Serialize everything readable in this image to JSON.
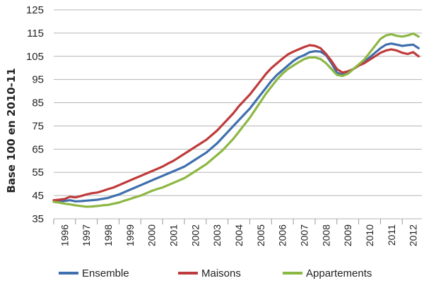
{
  "chart_data": {
    "type": "line",
    "title": "",
    "xlabel": "",
    "ylabel": "Base 100 en 2010-11",
    "ylim": [
      35,
      125
    ],
    "yticks": [
      35,
      45,
      55,
      65,
      75,
      85,
      95,
      105,
      115,
      125
    ],
    "xlim": [
      1996,
      2012.9
    ],
    "xticks": [
      "1996",
      "1997",
      "1998",
      "1999",
      "2000",
      "2001",
      "2002",
      "2003",
      "2004",
      "2005",
      "2006",
      "2007",
      "2008",
      "2009",
      "2010",
      "2011",
      "2012"
    ],
    "grid": "horizontal",
    "legend_position": "bottom",
    "series": [
      {
        "name": "Ensemble",
        "color": "#3f6fad",
        "x": [
          1996,
          1996.25,
          1996.5,
          1996.75,
          1997,
          1997.25,
          1997.5,
          1997.75,
          1998,
          1998.25,
          1998.5,
          1998.75,
          1999,
          1999.25,
          1999.5,
          1999.75,
          2000,
          2000.25,
          2000.5,
          2000.75,
          2001,
          2001.25,
          2001.5,
          2001.75,
          2002,
          2002.25,
          2002.5,
          2002.75,
          2003,
          2003.25,
          2003.5,
          2003.75,
          2004,
          2004.25,
          2004.5,
          2004.75,
          2005,
          2005.25,
          2005.5,
          2005.75,
          2006,
          2006.25,
          2006.5,
          2006.75,
          2007,
          2007.25,
          2007.5,
          2007.75,
          2008,
          2008.25,
          2008.5,
          2008.75,
          2009,
          2009.25,
          2009.5,
          2009.75,
          2010,
          2010.25,
          2010.5,
          2010.75,
          2011,
          2011.25,
          2011.5,
          2011.75,
          2012,
          2012.25,
          2012.5,
          2012.75
        ],
        "values": [
          42.8,
          42.6,
          42.7,
          43.0,
          42.5,
          42.6,
          42.8,
          43.0,
          43.2,
          43.6,
          44.0,
          44.8,
          45.5,
          46.5,
          47.5,
          48.5,
          49.5,
          50.5,
          51.5,
          52.5,
          53.5,
          54.5,
          55.5,
          56.5,
          57.5,
          59.0,
          60.5,
          62.0,
          63.5,
          65.5,
          67.5,
          70.0,
          72.5,
          75.0,
          77.5,
          80.0,
          82.5,
          85.5,
          88.5,
          91.5,
          94.5,
          97.0,
          99.0,
          101.0,
          103.0,
          104.5,
          105.5,
          106.8,
          107.2,
          107.0,
          105.5,
          102.0,
          98.0,
          97.0,
          97.5,
          99.5,
          101.0,
          102.5,
          104.5,
          106.5,
          108.5,
          110.0,
          110.5,
          110.0,
          109.5,
          109.8,
          110.0,
          108.5
        ]
      },
      {
        "name": "Maisons",
        "color": "#bf3b3b",
        "x": [
          1996,
          1996.25,
          1996.5,
          1996.75,
          1997,
          1997.25,
          1997.5,
          1997.75,
          1998,
          1998.25,
          1998.5,
          1998.75,
          1999,
          1999.25,
          1999.5,
          1999.75,
          2000,
          2000.25,
          2000.5,
          2000.75,
          2001,
          2001.25,
          2001.5,
          2001.75,
          2002,
          2002.25,
          2002.5,
          2002.75,
          2003,
          2003.25,
          2003.5,
          2003.75,
          2004,
          2004.25,
          2004.5,
          2004.75,
          2005,
          2005.25,
          2005.5,
          2005.75,
          2006,
          2006.25,
          2006.5,
          2006.75,
          2007,
          2007.25,
          2007.5,
          2007.75,
          2008,
          2008.25,
          2008.5,
          2008.75,
          2009,
          2009.25,
          2009.5,
          2009.75,
          2010,
          2010.25,
          2010.5,
          2010.75,
          2011,
          2011.25,
          2011.5,
          2011.75,
          2012,
          2012.25,
          2012.5,
          2012.75
        ],
        "values": [
          43.0,
          43.2,
          43.5,
          44.5,
          44.2,
          44.8,
          45.5,
          46.0,
          46.3,
          47.0,
          47.8,
          48.5,
          49.5,
          50.5,
          51.5,
          52.5,
          53.5,
          54.5,
          55.5,
          56.5,
          57.5,
          58.8,
          60.0,
          61.5,
          63.0,
          64.5,
          66.0,
          67.5,
          69.0,
          71.0,
          73.0,
          75.5,
          78.0,
          80.5,
          83.5,
          86.0,
          88.5,
          91.5,
          94.5,
          97.5,
          100.0,
          102.0,
          104.0,
          105.8,
          107.0,
          108.0,
          109.0,
          109.8,
          109.5,
          108.5,
          106.0,
          103.0,
          99.5,
          98.0,
          98.5,
          99.5,
          101.0,
          102.0,
          103.5,
          105.0,
          106.5,
          107.5,
          108.0,
          107.5,
          106.5,
          106.0,
          106.8,
          105.0
        ]
      },
      {
        "name": "Appartements",
        "color": "#8db743",
        "x": [
          1996,
          1996.25,
          1996.5,
          1996.75,
          1997,
          1997.25,
          1997.5,
          1997.75,
          1998,
          1998.25,
          1998.5,
          1998.75,
          1999,
          1999.25,
          1999.5,
          1999.75,
          2000,
          2000.25,
          2000.5,
          2000.75,
          2001,
          2001.25,
          2001.5,
          2001.75,
          2002,
          2002.25,
          2002.5,
          2002.75,
          2003,
          2003.25,
          2003.5,
          2003.75,
          2004,
          2004.25,
          2004.5,
          2004.75,
          2005,
          2005.25,
          2005.5,
          2005.75,
          2006,
          2006.25,
          2006.5,
          2006.75,
          2007,
          2007.25,
          2007.5,
          2007.75,
          2008,
          2008.25,
          2008.5,
          2008.75,
          2009,
          2009.25,
          2009.5,
          2009.75,
          2010,
          2010.25,
          2010.5,
          2010.75,
          2011,
          2011.25,
          2011.5,
          2011.75,
          2012,
          2012.25,
          2012.5,
          2012.75
        ],
        "values": [
          42.3,
          42.0,
          41.5,
          41.2,
          40.8,
          40.5,
          40.2,
          40.3,
          40.5,
          40.8,
          41.0,
          41.5,
          42.0,
          42.8,
          43.5,
          44.3,
          45.0,
          46.0,
          47.0,
          47.8,
          48.5,
          49.5,
          50.5,
          51.5,
          52.5,
          54.0,
          55.5,
          57.0,
          58.5,
          60.5,
          62.5,
          64.5,
          67.0,
          69.5,
          72.5,
          75.5,
          78.5,
          82.0,
          85.5,
          89.0,
          92.0,
          95.0,
          97.5,
          99.5,
          101.0,
          102.5,
          103.8,
          104.5,
          104.5,
          103.8,
          102.0,
          99.5,
          97.0,
          96.5,
          97.5,
          99.5,
          101.5,
          103.5,
          106.5,
          109.5,
          112.5,
          114.0,
          114.5,
          113.8,
          113.5,
          114.0,
          114.8,
          113.5
        ]
      }
    ]
  }
}
